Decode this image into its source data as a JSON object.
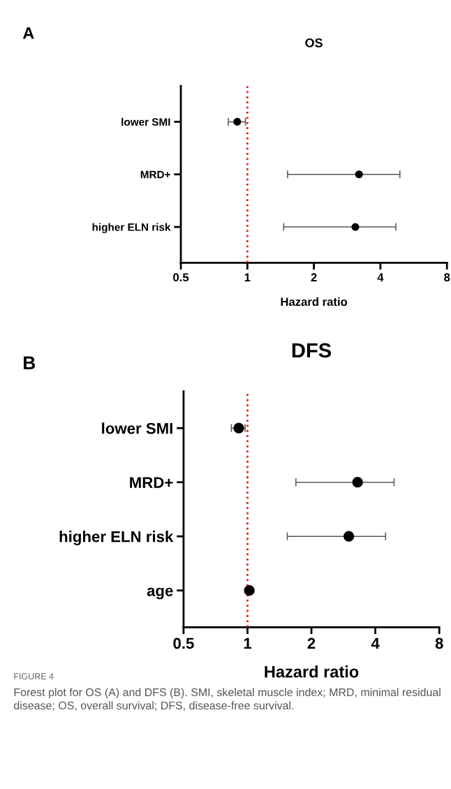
{
  "chart_data": [
    {
      "type": "scatter",
      "title": "OS",
      "xlabel": "Hazard ratio",
      "orientation": "horizontal",
      "categories": [
        "lower SMI",
        "MRD+",
        "higher ELN risk"
      ],
      "series": [
        {
          "color": "#000000",
          "values": [
            0.9,
            3.2,
            3.08
          ],
          "errors": [
            [
              0.82,
              0.98
            ],
            [
              1.52,
              4.9
            ],
            [
              1.46,
              4.7
            ]
          ]
        }
      ],
      "log": "x",
      "xlim": [
        0.5,
        8
      ],
      "xticks": [
        0.5,
        1,
        2,
        4,
        8
      ],
      "marker": "circle",
      "ref_lines": [
        {
          "axis": "x",
          "value": 1,
          "color": "#e02020",
          "line_style": "dotted"
        }
      ],
      "annotations": [
        "A"
      ]
    },
    {
      "type": "scatter",
      "title": "DFS",
      "xlabel": "Hazard ratio",
      "orientation": "horizontal",
      "categories": [
        "lower SMI",
        "MRD+",
        "higher ELN risk",
        "age"
      ],
      "series": [
        {
          "color": "#000000",
          "values": [
            0.91,
            3.3,
            3.0,
            1.02
          ],
          "errors": [
            [
              0.84,
              0.975
            ],
            [
              1.69,
              4.9
            ],
            [
              1.54,
              4.47
            ],
            null
          ]
        }
      ],
      "log": "x",
      "xlim": [
        0.5,
        8
      ],
      "xticks": [
        0.5,
        1,
        2,
        4,
        8
      ],
      "marker": "circle",
      "ref_lines": [
        {
          "axis": "x",
          "value": 1,
          "color": "#e02020",
          "line_style": "dotted"
        }
      ],
      "annotations": [
        "B",
        "FIGURE 4",
        "Forest plot for OS (A) and DFS (B). SMI, skeletal muscle index; MRD, minimal residual disease; OS, overall survival; DFS, disease-free survival."
      ]
    }
  ]
}
